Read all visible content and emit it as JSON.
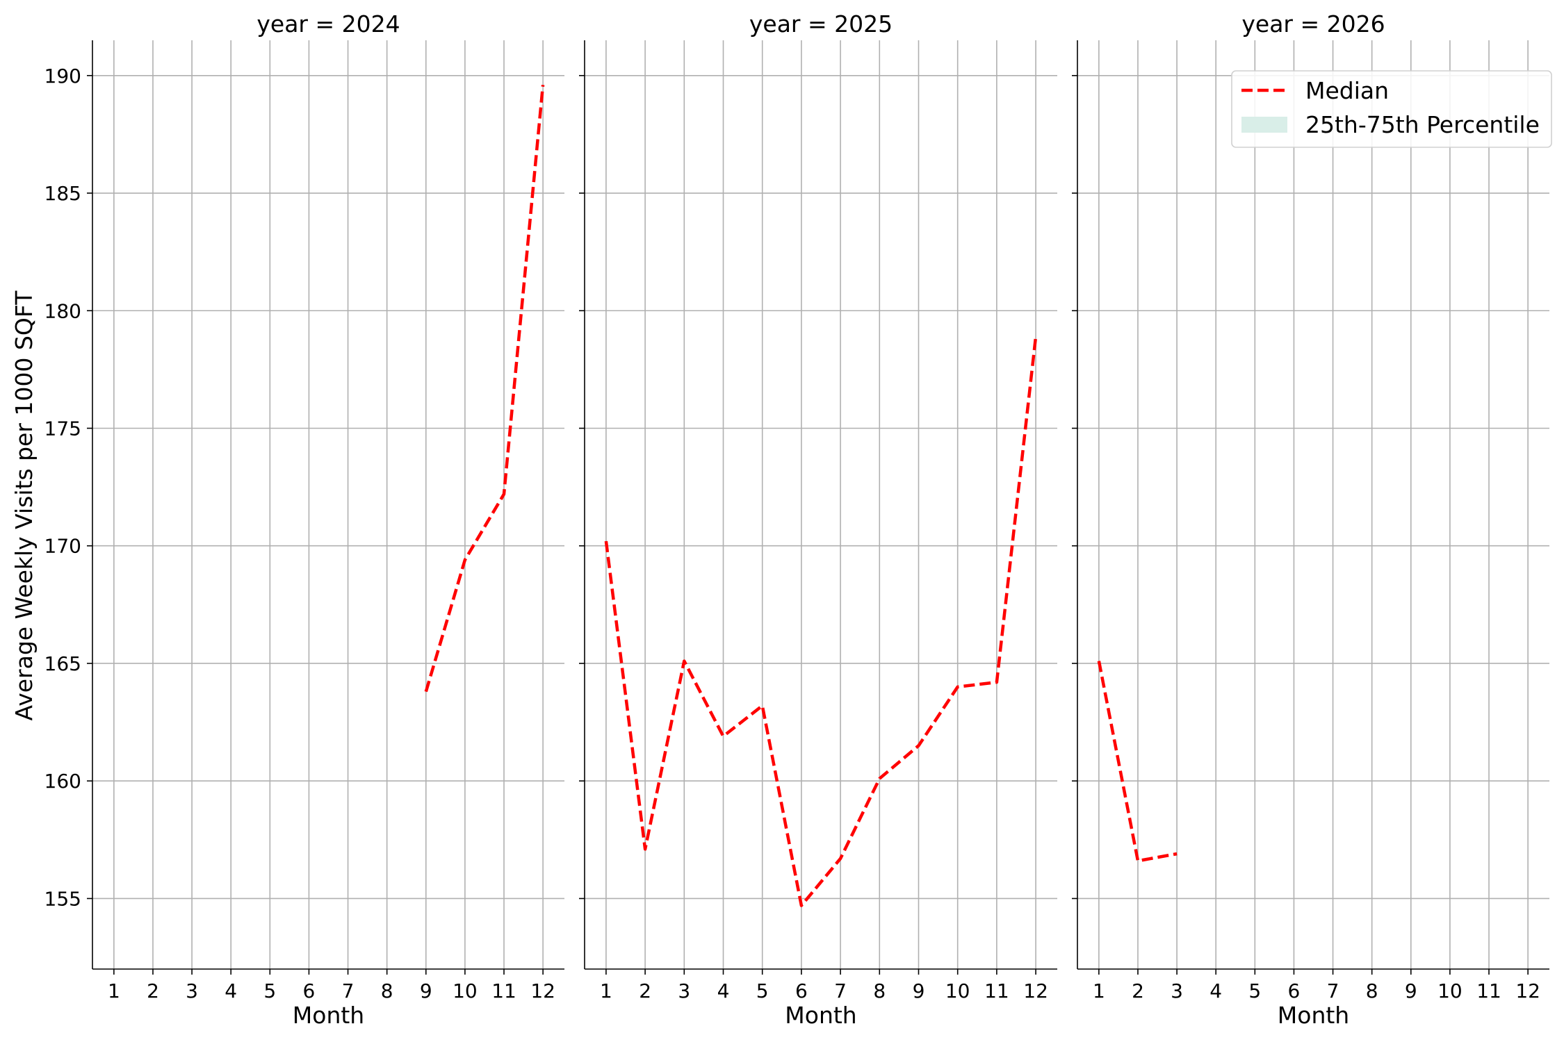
{
  "chart_data": {
    "type": "line",
    "layout": "faceted by year",
    "ylabel": "Average Weekly Visits per 1000 SQFT",
    "ylim": [
      152,
      191.5
    ],
    "yticks": [
      155,
      160,
      165,
      170,
      175,
      180,
      185,
      190
    ],
    "xlim": [
      0.45,
      12.55
    ],
    "xticks": [
      1,
      2,
      3,
      4,
      5,
      6,
      7,
      8,
      9,
      10,
      11,
      12
    ],
    "grid": true,
    "legend": {
      "placement": "top-right of last panel",
      "entries": [
        {
          "label": "Median",
          "style": "dashed-line",
          "color": "#ff0000"
        },
        {
          "label": "25th-75th Percentile",
          "style": "band",
          "color": "#d9eee8"
        }
      ]
    },
    "panels": [
      {
        "title": "year = 2024",
        "xlabel": "Month",
        "series": [
          {
            "name": "Median",
            "color": "#ff0000",
            "x": [
              9,
              10,
              11,
              12
            ],
            "y": [
              163.8,
              169.4,
              172.2,
              189.6
            ]
          }
        ]
      },
      {
        "title": "year = 2025",
        "xlabel": "Month",
        "series": [
          {
            "name": "Median",
            "color": "#ff0000",
            "x": [
              1,
              2,
              3,
              4,
              5,
              6,
              7,
              8,
              9,
              10,
              11,
              12
            ],
            "y": [
              170.2,
              157.1,
              165.1,
              161.9,
              163.2,
              154.7,
              156.7,
              160.1,
              161.5,
              164.0,
              164.2,
              178.9
            ]
          }
        ]
      },
      {
        "title": "year = 2026",
        "xlabel": "Month",
        "series": [
          {
            "name": "Median",
            "color": "#ff0000",
            "x": [
              1,
              2,
              3
            ],
            "y": [
              165.1,
              156.6,
              156.9
            ]
          }
        ]
      }
    ]
  }
}
